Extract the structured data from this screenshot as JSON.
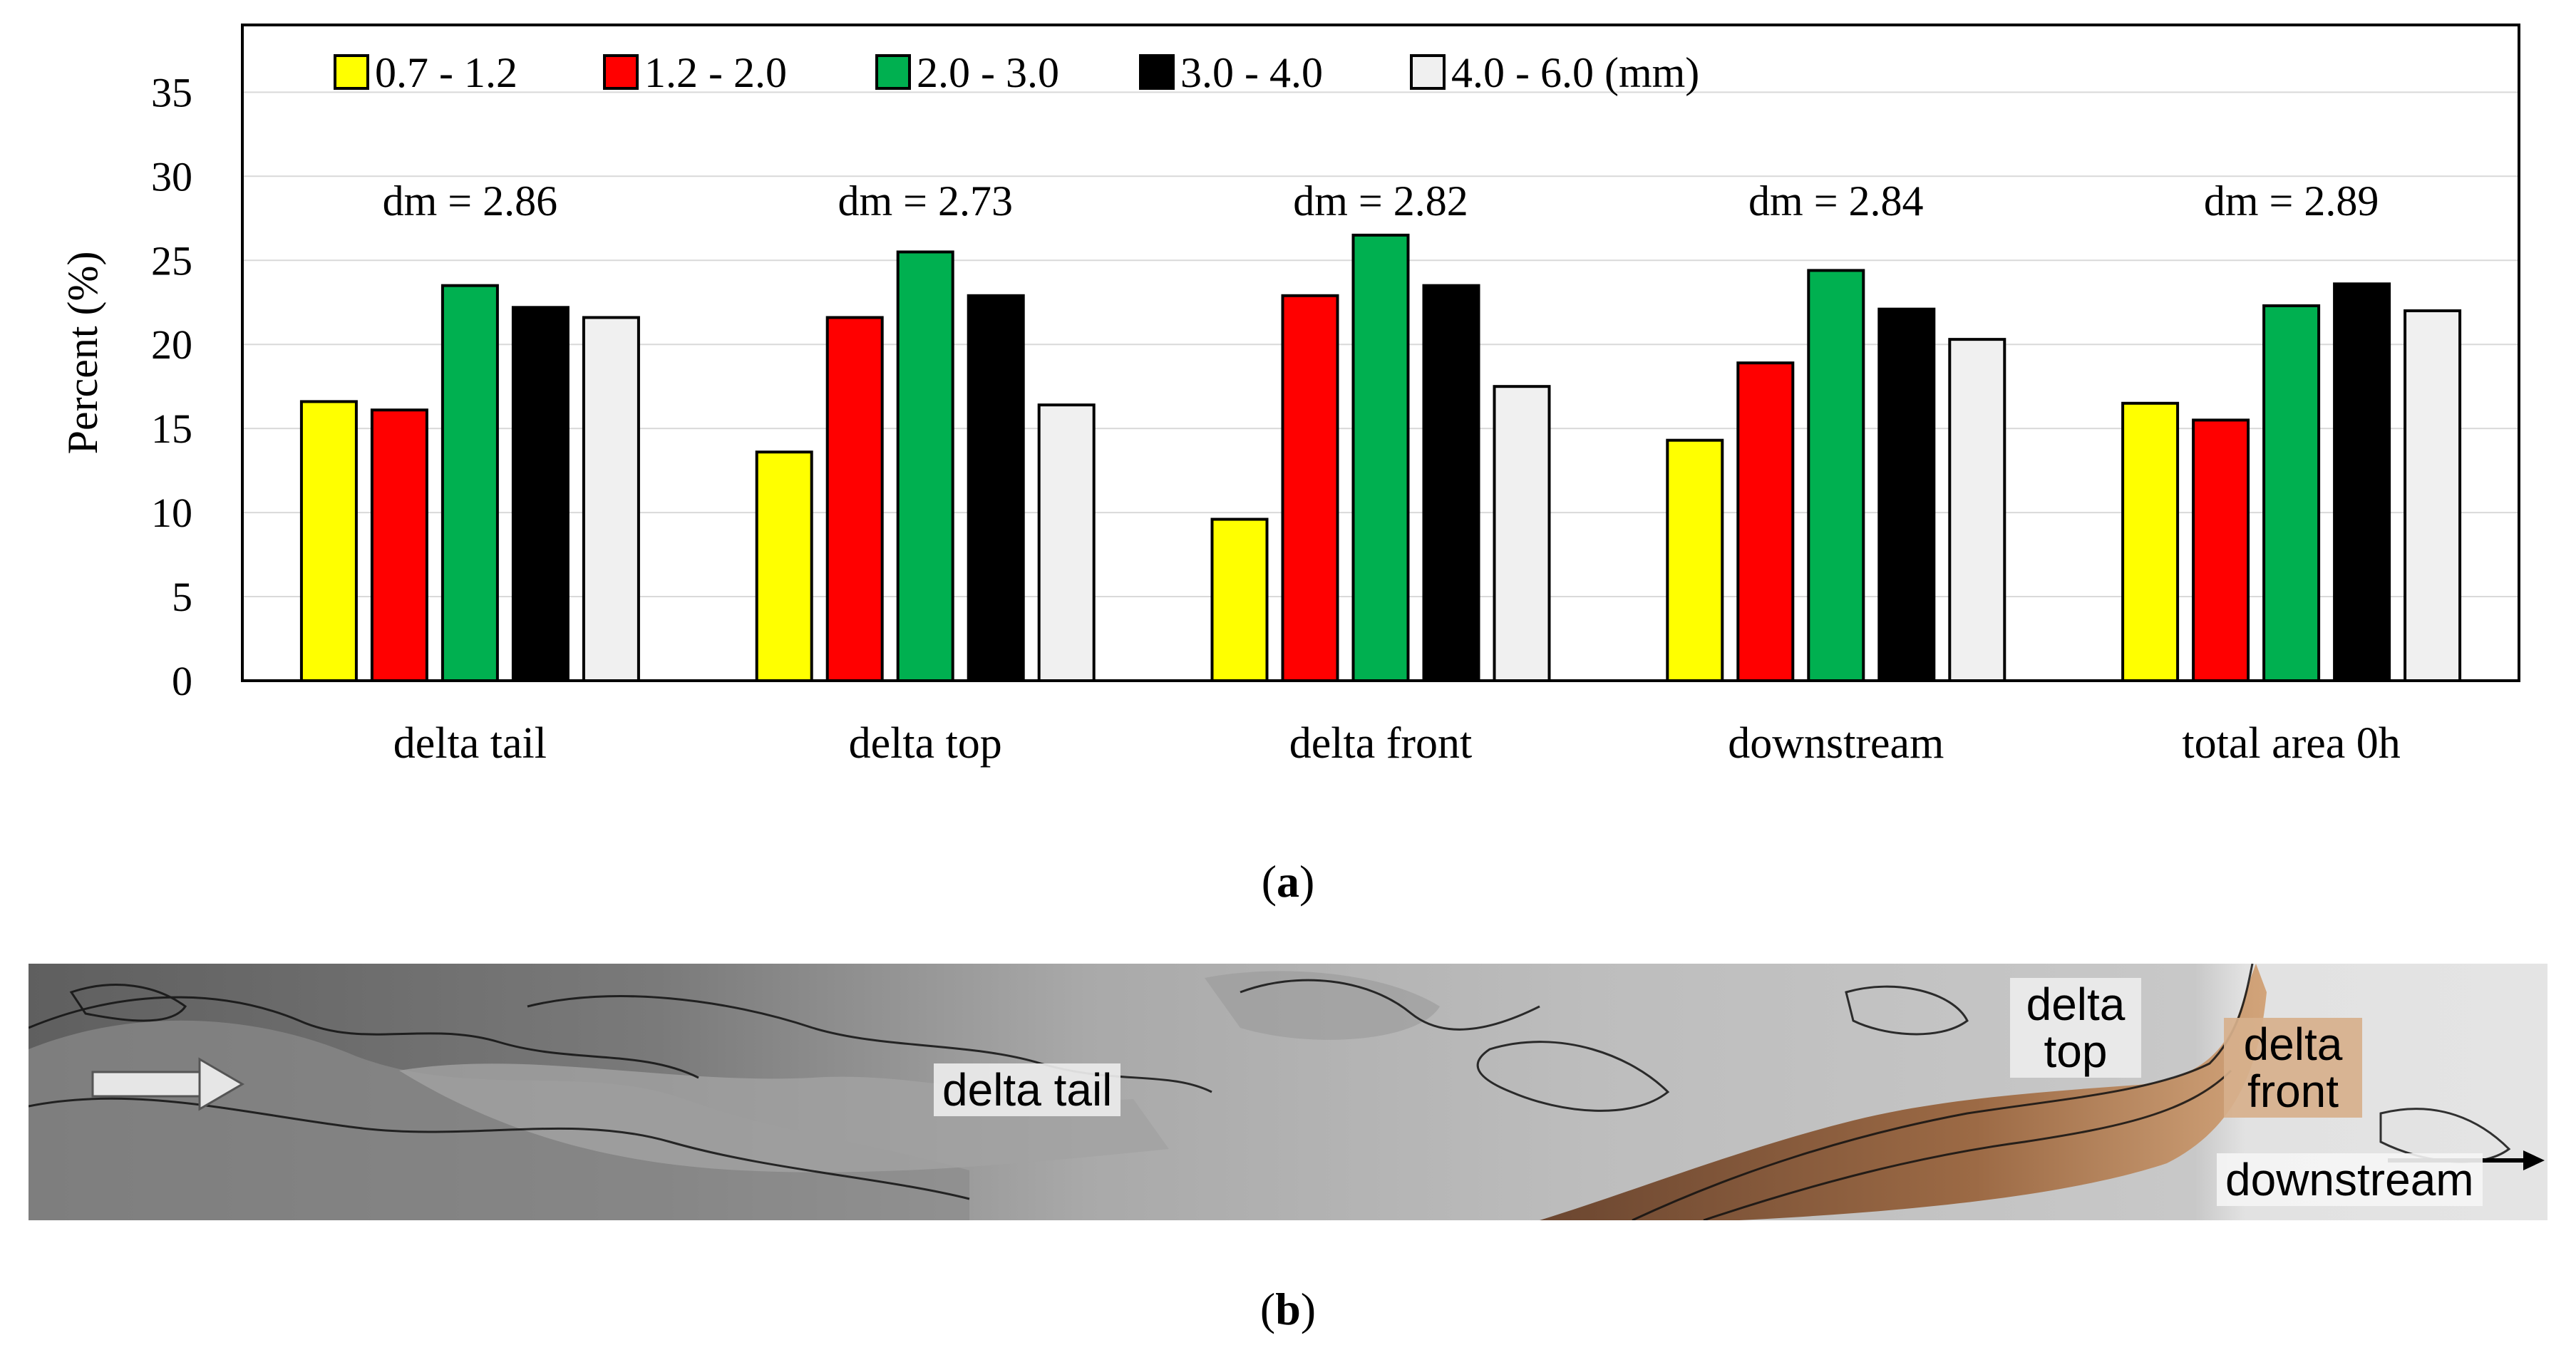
{
  "chart_data": {
    "type": "bar",
    "title": "",
    "xlabel": "",
    "ylabel": "Percent (%)",
    "ylim": [
      0,
      39
    ],
    "yticks": [
      0,
      5,
      10,
      15,
      20,
      25,
      30,
      35
    ],
    "grid": true,
    "legend_position": "top-left",
    "categories": [
      "delta tail",
      "delta top",
      "delta front",
      "downstream",
      "total area 0h"
    ],
    "annotations": [
      "dm = 2.86",
      "dm = 2.73",
      "dm = 2.82",
      "dm = 2.84",
      "dm = 2.89"
    ],
    "series": [
      {
        "name": "0.7 - 1.2",
        "legend_label": "0.7 - 1.2",
        "color": "#ffff00",
        "values": [
          16.6,
          13.6,
          9.6,
          14.3,
          16.5
        ]
      },
      {
        "name": "1.2 - 2.0",
        "legend_label": "1.2  - 2.0",
        "color": "#ff0000",
        "values": [
          16.1,
          21.6,
          22.9,
          18.9,
          15.5
        ]
      },
      {
        "name": "2.0 - 3.0",
        "legend_label": "2.0 - 3.0",
        "color": "#00b050",
        "values": [
          23.5,
          25.5,
          26.5,
          24.4,
          22.3
        ]
      },
      {
        "name": "3.0 - 4.0",
        "legend_label": "3.0 - 4.0",
        "color": "#000000",
        "values": [
          22.2,
          22.9,
          23.5,
          22.1,
          23.6
        ]
      },
      {
        "name": "4.0 - 6.0",
        "legend_label": "4.0 - 6.0 (mm)",
        "color": "#f0f0f0",
        "values": [
          21.6,
          16.4,
          17.5,
          20.3,
          22.0
        ]
      }
    ]
  },
  "captions": {
    "a": "a",
    "b": "b"
  },
  "map": {
    "labels": {
      "tail": "delta tail",
      "top": "delta top",
      "front": "delta front",
      "downstream": "downstream"
    },
    "colors": {
      "upstream": "#6e6e6e",
      "mid": "#b2b2b2",
      "downstream": "#dcdcdc",
      "deposit": "#8b5a3c"
    }
  }
}
